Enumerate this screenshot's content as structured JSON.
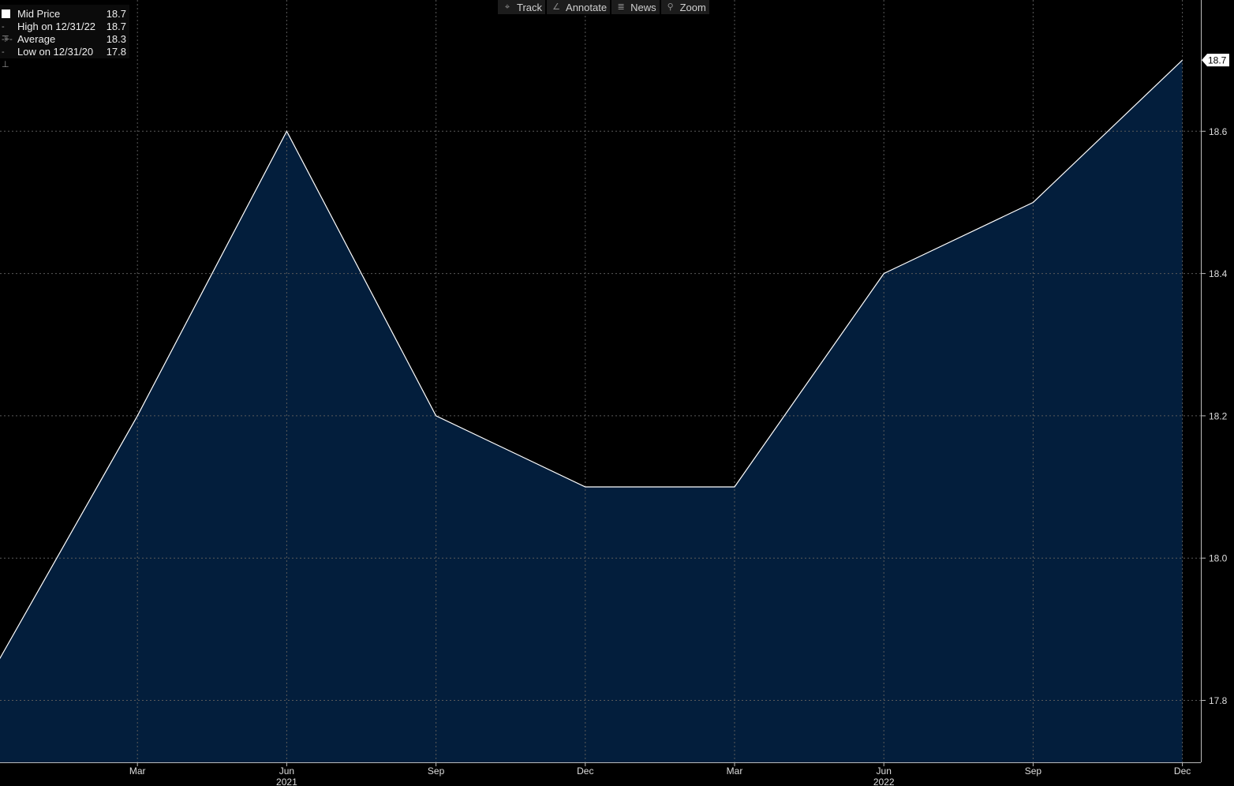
{
  "toolbar": {
    "buttons": [
      {
        "label": "Track",
        "icon": "crosshair-icon"
      },
      {
        "label": "Annotate",
        "icon": "pencil-icon"
      },
      {
        "label": "News",
        "icon": "news-icon"
      },
      {
        "label": "Zoom",
        "icon": "magnifier-icon"
      }
    ]
  },
  "legend": [
    {
      "label": "Mid Price",
      "value": "18.7"
    },
    {
      "label": "High on 12/31/22",
      "value": "18.7"
    },
    {
      "label": "Average",
      "value": "18.3"
    },
    {
      "label": "Low on 12/31/20",
      "value": "17.8"
    }
  ],
  "chart_data": {
    "type": "area",
    "x": [
      "2020-12-31",
      "2021-03-31",
      "2021-06-30",
      "2021-09-30",
      "2021-12-31",
      "2022-03-31",
      "2022-06-30",
      "2022-09-30",
      "2022-12-31"
    ],
    "series": [
      {
        "name": "Mid Price",
        "values": [
          17.83,
          18.2,
          18.6,
          18.2,
          18.1,
          18.1,
          18.4,
          18.5,
          18.7
        ]
      }
    ],
    "x_ticks": [
      "Mar",
      "Jun",
      "Sep",
      "Dec",
      "Mar",
      "Jun",
      "Sep",
      "Dec"
    ],
    "year_labels": [
      "2021",
      "2022"
    ],
    "y_ticks": [
      "17.8",
      "18.0",
      "18.2",
      "18.4",
      "18.6"
    ],
    "ylim": [
      17.7,
      18.8
    ],
    "last_value_label": "18.7",
    "grid": true,
    "colors": {
      "background": "#000000",
      "area_fill": "#031e3c",
      "line": "#ffffff",
      "grid": "#5a5a5a",
      "axis_text": "#dddddd"
    }
  }
}
